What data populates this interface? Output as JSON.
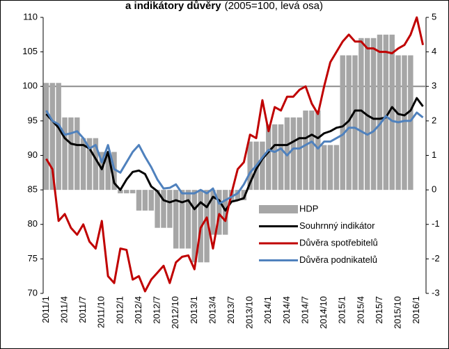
{
  "chart_data": {
    "type": "bar-line",
    "title": "a indikátory důvěry",
    "subtitle": "(2005=100, levá osa)",
    "categories": [
      "2011/1",
      null,
      null,
      "2011/4",
      null,
      null,
      "2011/7",
      null,
      null,
      "2011/10",
      null,
      null,
      "2012/1",
      null,
      null,
      "2012/4",
      null,
      null,
      "2012/7",
      null,
      null,
      "2012/10",
      null,
      null,
      "2013/1",
      null,
      null,
      "2013/4",
      null,
      null,
      "2013/7",
      null,
      null,
      "2013/10",
      null,
      null,
      "2014/1",
      null,
      null,
      "2014/4",
      null,
      null,
      "2014/7",
      null,
      null,
      "2014/10",
      null,
      null,
      "2015/1",
      null,
      null,
      "2015/4",
      null,
      null,
      "2015/7",
      null,
      null,
      "2015/10",
      null,
      null,
      "2016/1",
      null
    ],
    "ylim": [
      70,
      110
    ],
    "yticks": [
      70,
      75,
      80,
      85,
      90,
      95,
      100,
      105,
      110
    ],
    "y2lim": [
      -3,
      5
    ],
    "y2ticks": [
      -3,
      -2,
      -1,
      0,
      1,
      2,
      3,
      4,
      5
    ],
    "hline": 100,
    "legend": "lower right",
    "series": [
      {
        "name": "HDP",
        "type": "bar",
        "axis": "y2",
        "color": "#a6a6a6",
        "values": [
          3.1,
          3.1,
          3.1,
          2.1,
          2.1,
          2.1,
          1.5,
          1.5,
          1.5,
          1.1,
          1.1,
          1.1,
          -0.1,
          -0.1,
          -0.1,
          -0.6,
          -0.6,
          -0.6,
          -1.1,
          -1.1,
          -1.1,
          -1.7,
          -1.7,
          -1.7,
          -2.1,
          -2.1,
          -2.1,
          -1.3,
          -1.3,
          -1.3,
          -0.3,
          -0.3,
          -0.3,
          1.4,
          1.4,
          1.4,
          1.9,
          1.9,
          1.9,
          2.1,
          2.1,
          2.1,
          2.3,
          2.3,
          2.3,
          1.3,
          1.3,
          1.3,
          3.9,
          3.9,
          3.9,
          4.4,
          4.4,
          4.4,
          4.5,
          4.5,
          4.5,
          3.9,
          3.9,
          3.9,
          null,
          null
        ]
      },
      {
        "name": "Souhrnný indikátor",
        "type": "line",
        "color": "#000000",
        "values": [
          96,
          95,
          94,
          92.5,
          91.7,
          91.5,
          91.5,
          91,
          89.5,
          88,
          90.5,
          86,
          85,
          86.5,
          87.6,
          87.8,
          87.3,
          85.5,
          84.8,
          83.5,
          83.2,
          83.5,
          83.2,
          83.5,
          82.2,
          83.2,
          82.5,
          84,
          83.5,
          82,
          83.3,
          83.5,
          83.8,
          86,
          88,
          89.5,
          90.5,
          91.5,
          91.5,
          91.5,
          92,
          92.5,
          92.5,
          93,
          92.5,
          93.2,
          93.5,
          94,
          94.2,
          95,
          96.5,
          96.5,
          95.8,
          95.3,
          95.3,
          95.5,
          97,
          96,
          95.8,
          96.5,
          98.3,
          97.1
        ]
      },
      {
        "name": "Důvěra spotřebitelů",
        "type": "line",
        "color": "#c00000",
        "values": [
          89.5,
          88,
          80.5,
          81.5,
          79.5,
          78.5,
          80,
          77.5,
          76.5,
          80.5,
          72.5,
          71.5,
          76.5,
          76.3,
          72,
          72.5,
          70.3,
          72,
          73,
          74,
          71.5,
          74.5,
          75.3,
          75.5,
          73.5,
          79.5,
          81,
          76.5,
          81.5,
          80.5,
          84.5,
          88,
          89,
          93,
          92.5,
          98,
          93.5,
          97,
          96.5,
          98.5,
          98.5,
          99.5,
          100,
          97.5,
          96,
          100,
          103.5,
          105,
          106.5,
          107.5,
          106.5,
          106.5,
          105.5,
          105.5,
          105,
          105,
          104.8,
          105.5,
          106,
          107.5,
          110,
          106
        ]
      },
      {
        "name": "Důvěra podnikatelů",
        "type": "line",
        "color": "#4f81bd",
        "values": [
          96.5,
          95,
          94.5,
          93,
          93.2,
          93.5,
          92.5,
          91,
          91.5,
          89,
          91.5,
          88,
          87.5,
          89,
          90.5,
          91.5,
          89.8,
          88.3,
          86.5,
          85.2,
          85.3,
          85.8,
          84.5,
          84.5,
          84.5,
          85,
          84.5,
          85.2,
          83,
          83.5,
          84,
          84.5,
          85.8,
          87.5,
          88.5,
          89.7,
          90.8,
          90.5,
          91,
          90,
          91,
          91,
          91.5,
          92,
          91,
          92,
          92,
          92.5,
          93,
          94,
          94,
          93.5,
          93,
          93.5,
          94.5,
          95.7,
          95,
          94.8,
          95,
          95,
          96.2,
          95.5
        ]
      }
    ]
  }
}
